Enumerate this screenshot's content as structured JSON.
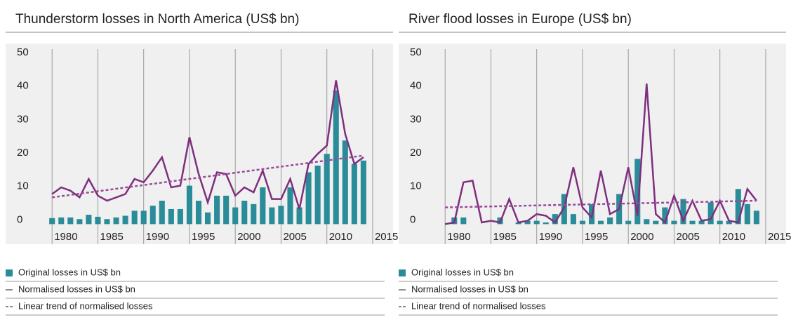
{
  "chart_data": [
    {
      "type": "bar",
      "title": "Thunderstorm losses in North America (US$ bn)",
      "x": [
        1980,
        1981,
        1982,
        1983,
        1984,
        1985,
        1986,
        1987,
        1988,
        1989,
        1990,
        1991,
        1992,
        1993,
        1994,
        1995,
        1996,
        1997,
        1998,
        1999,
        2000,
        2001,
        2002,
        2003,
        2004,
        2005,
        2006,
        2007,
        2008,
        2009,
        2010,
        2011,
        2012,
        2013,
        2014
      ],
      "xlim": [
        1976,
        2016
      ],
      "xticks": [
        1980,
        1985,
        1990,
        1995,
        2000,
        2005,
        2010,
        2015
      ],
      "ylim": [
        -6,
        54
      ],
      "yticks": [
        0,
        10,
        20,
        30,
        40,
        50
      ],
      "series": [
        {
          "name": "Original losses in US$ bn",
          "type": "bar",
          "color": "#2b8c99",
          "values": [
            1.8,
            2,
            2,
            1.5,
            2.8,
            2.2,
            1.5,
            2,
            2.5,
            4,
            4,
            5.5,
            7,
            4.5,
            4.5,
            11.5,
            7,
            3.5,
            8.5,
            8.5,
            5,
            7,
            6,
            11,
            5,
            5.5,
            11,
            5,
            15.5,
            17.5,
            21,
            40,
            25,
            18,
            19
          ]
        },
        {
          "name": "Normalised losses in US$ bn",
          "type": "line",
          "color": "#7e2f7e",
          "values": [
            9,
            11,
            10,
            8,
            13.5,
            8.5,
            7,
            8,
            9,
            13.5,
            12.5,
            16,
            20,
            11,
            11.5,
            26,
            15,
            6.5,
            15.5,
            15,
            8.5,
            11,
            9.5,
            16,
            7.5,
            7.5,
            13.5,
            4.5,
            18,
            21,
            23.5,
            43,
            27,
            18,
            20
          ]
        },
        {
          "name": "Linear trend of normalised losses",
          "type": "line",
          "dashed": true,
          "color": "#9a4a9a",
          "x": [
            1980,
            2014
          ],
          "values": [
            8,
            20.5
          ]
        }
      ]
    },
    {
      "type": "bar",
      "title": "River flood losses in Europe (US$ bn)",
      "x": [
        1980,
        1981,
        1982,
        1983,
        1984,
        1985,
        1986,
        1987,
        1988,
        1989,
        1990,
        1991,
        1992,
        1993,
        1994,
        1995,
        1996,
        1997,
        1998,
        1999,
        2000,
        2001,
        2002,
        2003,
        2004,
        2005,
        2006,
        2007,
        2008,
        2009,
        2010,
        2011,
        2012,
        2013,
        2014
      ],
      "xlim": [
        1976,
        2016
      ],
      "xticks": [
        1980,
        1985,
        1990,
        1995,
        2000,
        2005,
        2010,
        2015
      ],
      "ylim": [
        -6,
        54
      ],
      "yticks": [
        0,
        10,
        20,
        30,
        40,
        50
      ],
      "series": [
        {
          "name": "Original losses in US$ bn",
          "type": "bar",
          "color": "#2b8c99",
          "values": [
            0,
            2,
            2,
            0,
            0,
            0,
            2,
            0,
            0.5,
            1,
            1,
            0.5,
            3,
            9,
            3,
            1,
            6,
            1,
            2,
            9,
            1,
            19.5,
            1.5,
            1,
            5,
            1,
            7.5,
            1,
            1,
            6.5,
            1,
            1,
            10.5,
            6,
            4
          ]
        },
        {
          "name": "Normalised losses in US$ bn",
          "type": "line",
          "color": "#7e2f7e",
          "values": [
            0,
            0.5,
            12.5,
            13,
            0.5,
            1,
            0.5,
            7.5,
            0.5,
            1,
            3,
            2.5,
            0.5,
            5,
            17,
            5,
            2,
            16,
            3,
            4.5,
            17,
            2.5,
            42,
            3,
            0.5,
            8.5,
            1,
            7,
            1,
            1.5,
            7,
            1,
            0.5,
            10.5,
            7
          ]
        },
        {
          "name": "Linear trend of normalised losses",
          "type": "line",
          "dashed": true,
          "color": "#9a4a9a",
          "x": [
            1980,
            2014
          ],
          "values": [
            5,
            7
          ]
        }
      ]
    }
  ]
}
